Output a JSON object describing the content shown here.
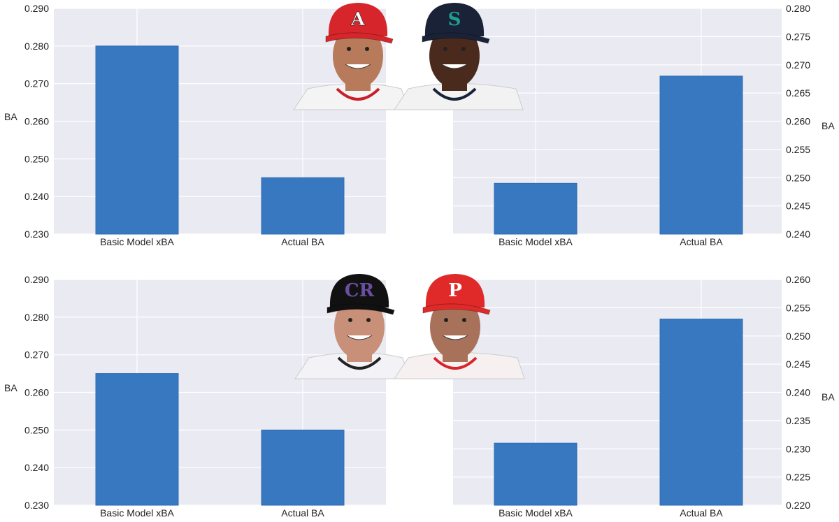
{
  "chart_data": [
    {
      "type": "bar",
      "position": "top-left",
      "categories": [
        "Basic Model xBA",
        "Actual BA"
      ],
      "values": [
        0.28,
        0.245
      ],
      "ylabel": "BA",
      "ylim": [
        0.23,
        0.29
      ],
      "yticks": [
        "0.230",
        "0.240",
        "0.250",
        "0.260",
        "0.270",
        "0.280",
        "0.290"
      ],
      "yaxis_side": "left",
      "grid": true,
      "player_logo": "A",
      "cap_color": "#d7262b"
    },
    {
      "type": "bar",
      "position": "top-right",
      "categories": [
        "Basic Model xBA",
        "Actual BA"
      ],
      "values": [
        0.249,
        0.268
      ],
      "ylabel": "BA",
      "ylim": [
        0.24,
        0.28
      ],
      "yticks": [
        "0.240",
        "0.245",
        "0.250",
        "0.255",
        "0.260",
        "0.265",
        "0.270",
        "0.275",
        "0.280"
      ],
      "yaxis_side": "right",
      "grid": true,
      "player_logo": "S",
      "cap_color": "#1a2238"
    },
    {
      "type": "bar",
      "position": "bottom-left",
      "categories": [
        "Basic Model xBA",
        "Actual BA"
      ],
      "values": [
        0.265,
        0.25
      ],
      "ylabel": "BA",
      "ylim": [
        0.23,
        0.29
      ],
      "yticks": [
        "0.230",
        "0.240",
        "0.250",
        "0.260",
        "0.270",
        "0.280",
        "0.290"
      ],
      "yaxis_side": "left",
      "grid": true,
      "player_logo": "CR",
      "cap_color": "#111111"
    },
    {
      "type": "bar",
      "position": "bottom-right",
      "categories": [
        "Basic Model xBA",
        "Actual BA"
      ],
      "values": [
        0.231,
        0.253
      ],
      "ylabel": "BA",
      "ylim": [
        0.22,
        0.26
      ],
      "yticks": [
        "0.220",
        "0.225",
        "0.230",
        "0.235",
        "0.240",
        "0.245",
        "0.250",
        "0.255",
        "0.260"
      ],
      "yaxis_side": "right",
      "grid": true,
      "player_logo": "P",
      "cap_color": "#e02a2a"
    }
  ],
  "colors": {
    "bar": "#3878c0",
    "plot_bg": "#eaeaf2",
    "grid": "#ffffff"
  }
}
